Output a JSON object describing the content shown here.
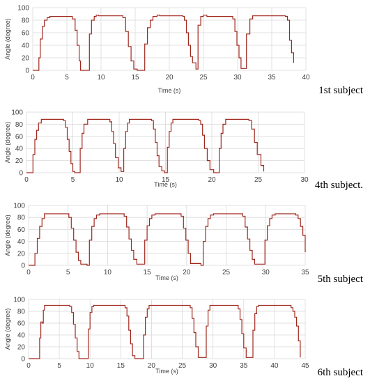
{
  "chart_data": [
    {
      "type": "line",
      "caption": "1st subject",
      "xlabel": "Time (s)",
      "ylabel": "Angle (degree)",
      "xlim": [
        0,
        40
      ],
      "ylim": [
        0,
        100
      ],
      "xticks": [
        0,
        5,
        10,
        15,
        20,
        25,
        30,
        35,
        40
      ],
      "yticks": [
        0,
        20,
        40,
        60,
        80,
        100
      ],
      "grid": true,
      "color": "#a0281e",
      "series": [
        {
          "x": [
            0,
            0.6,
            0.9,
            1.1,
            1.4,
            1.7,
            2.1,
            2.5,
            5.5,
            5.8,
            6.2,
            6.5,
            6.8,
            7.0,
            7.2,
            7.6,
            8.3,
            8.6,
            9.0,
            9.3,
            9.6,
            12.9,
            13.2,
            13.6,
            14.0,
            14.4,
            14.8,
            15.3,
            16.0,
            16.4,
            16.8,
            17.2,
            17.6,
            18.2,
            18.6,
            22.0,
            22.2,
            22.5,
            22.8,
            23.1,
            23.4,
            23.9,
            24.2,
            24.6,
            25.0,
            25.5,
            29.0,
            29.3,
            29.6,
            29.9,
            30.2,
            30.5,
            31.0,
            31.3,
            31.8,
            32.2,
            32.6,
            37.0,
            37.3,
            37.6,
            37.9,
            38.2
          ],
          "y": [
            0,
            0,
            20,
            50,
            70,
            80,
            84,
            86,
            86,
            82,
            64,
            40,
            15,
            0,
            0,
            0,
            58,
            80,
            86,
            88,
            87,
            87,
            84,
            62,
            38,
            15,
            2,
            0,
            0,
            42,
            68,
            80,
            86,
            88,
            87,
            86,
            80,
            60,
            40,
            22,
            12,
            2,
            72,
            86,
            88,
            86,
            86,
            82,
            62,
            40,
            20,
            3,
            3,
            58,
            82,
            87,
            87,
            86,
            80,
            48,
            28,
            12
          ]
        }
      ]
    },
    {
      "type": "line",
      "caption": "4th subject.",
      "xlabel": "Time (s)",
      "ylabel": "Angle (degree)",
      "xlim": [
        0,
        30
      ],
      "ylim": [
        0,
        100
      ],
      "xticks": [
        0,
        5,
        10,
        15,
        20,
        25,
        30
      ],
      "yticks": [
        0,
        20,
        40,
        60,
        80,
        100
      ],
      "grid": true,
      "color": "#a0281e",
      "series": [
        {
          "x": [
            0,
            0.5,
            0.7,
            0.9,
            1.1,
            1.3,
            1.6,
            3.8,
            4.0,
            4.2,
            4.4,
            4.6,
            4.8,
            5.0,
            5.2,
            5.6,
            5.8,
            6.0,
            6.2,
            6.6,
            8.8,
            9.0,
            9.2,
            9.4,
            9.6,
            9.9,
            10.2,
            10.5,
            10.7,
            10.9,
            11.1,
            11.5,
            13.5,
            13.7,
            13.9,
            14.1,
            14.3,
            14.6,
            14.9,
            15.2,
            15.4,
            15.6,
            15.8,
            16.2,
            18.6,
            18.8,
            19.0,
            19.2,
            19.5,
            19.8,
            20.2,
            20.6,
            20.8,
            21.0,
            21.2,
            21.5,
            23.8,
            24.0,
            24.3,
            24.6,
            24.9,
            25.3,
            25.6
          ],
          "y": [
            0,
            0,
            30,
            55,
            70,
            82,
            88,
            88,
            86,
            75,
            55,
            35,
            15,
            2,
            0,
            0,
            40,
            65,
            80,
            88,
            88,
            84,
            68,
            48,
            25,
            8,
            2,
            40,
            68,
            82,
            88,
            88,
            86,
            72,
            50,
            28,
            10,
            3,
            0,
            42,
            68,
            82,
            88,
            88,
            86,
            80,
            62,
            40,
            20,
            5,
            0,
            0,
            40,
            65,
            80,
            88,
            88,
            86,
            72,
            50,
            30,
            12,
            2
          ]
        }
      ]
    },
    {
      "type": "line",
      "caption": "5th subject",
      "xlabel": "Time (s)",
      "ylabel": "Angle (degree)",
      "xlim": [
        0,
        35
      ],
      "ylim": [
        0,
        100
      ],
      "xticks": [
        0,
        5,
        10,
        15,
        20,
        25,
        30,
        35
      ],
      "yticks": [
        0,
        20,
        40,
        60,
        80,
        100
      ],
      "grid": true,
      "color": "#a0281e",
      "series": [
        {
          "x": [
            0,
            0.6,
            0.8,
            1.1,
            1.4,
            1.7,
            2.0,
            2.3,
            4.8,
            5.1,
            5.4,
            5.7,
            6.0,
            6.3,
            6.6,
            7.4,
            7.7,
            8.0,
            8.3,
            8.6,
            9.0,
            11.8,
            12.1,
            12.4,
            12.7,
            13.0,
            13.3,
            13.7,
            14.4,
            14.7,
            15.0,
            15.3,
            15.6,
            16.0,
            19.0,
            19.3,
            19.6,
            19.9,
            20.2,
            20.5,
            21.8,
            22.1,
            22.4,
            22.7,
            23.0,
            23.4,
            26.8,
            27.1,
            27.4,
            27.7,
            28.0,
            28.3,
            28.6,
            29.6,
            29.9,
            30.2,
            30.5,
            30.8,
            31.2,
            33.8,
            34.1,
            34.4,
            34.7,
            35.0
          ],
          "y": [
            0,
            0,
            20,
            45,
            65,
            78,
            86,
            86,
            86,
            80,
            62,
            42,
            22,
            8,
            2,
            0,
            42,
            65,
            78,
            84,
            86,
            86,
            82,
            64,
            44,
            25,
            10,
            2,
            2,
            42,
            66,
            78,
            84,
            86,
            86,
            82,
            62,
            42,
            20,
            3,
            0,
            40,
            65,
            78,
            84,
            86,
            86,
            82,
            64,
            44,
            25,
            10,
            2,
            2,
            42,
            66,
            78,
            84,
            86,
            84,
            78,
            65,
            50,
            22
          ]
        }
      ]
    },
    {
      "type": "line",
      "caption": "6th subject",
      "xlabel": "Time (s)",
      "ylabel": "Angle (degree)",
      "xlim": [
        0,
        45
      ],
      "ylim": [
        0,
        100
      ],
      "xticks": [
        0,
        5,
        10,
        15,
        20,
        25,
        30,
        35,
        40,
        45
      ],
      "yticks": [
        0,
        20,
        40,
        60,
        80,
        100
      ],
      "grid": true,
      "color": "#a0281e",
      "series": [
        {
          "x": [
            0,
            1.6,
            1.8,
            2.0,
            2.2,
            2.4,
            2.6,
            6.4,
            6.7,
            7.0,
            7.3,
            7.6,
            7.9,
            8.2,
            9.4,
            9.7,
            10.0,
            10.3,
            10.6,
            15.4,
            15.7,
            16.0,
            16.3,
            16.6,
            16.9,
            17.3,
            18.4,
            18.7,
            19.0,
            19.3,
            19.6,
            26.0,
            26.3,
            26.6,
            26.9,
            27.2,
            27.6,
            28.6,
            28.9,
            29.2,
            29.5,
            33.8,
            34.1,
            34.4,
            34.7,
            35.0,
            35.4,
            36.2,
            36.5,
            36.8,
            37.1,
            37.4,
            42.4,
            42.7,
            43.0,
            43.3,
            43.6,
            43.9,
            44.2
          ],
          "y": [
            0,
            0,
            35,
            62,
            60,
            82,
            90,
            90,
            88,
            78,
            58,
            35,
            12,
            0,
            0,
            50,
            78,
            88,
            90,
            90,
            86,
            72,
            48,
            25,
            5,
            0,
            0,
            40,
            70,
            84,
            90,
            90,
            86,
            68,
            44,
            20,
            2,
            2,
            55,
            82,
            90,
            90,
            84,
            66,
            42,
            18,
            2,
            2,
            48,
            76,
            88,
            90,
            90,
            86,
            80,
            70,
            55,
            30,
            2
          ]
        }
      ]
    }
  ]
}
